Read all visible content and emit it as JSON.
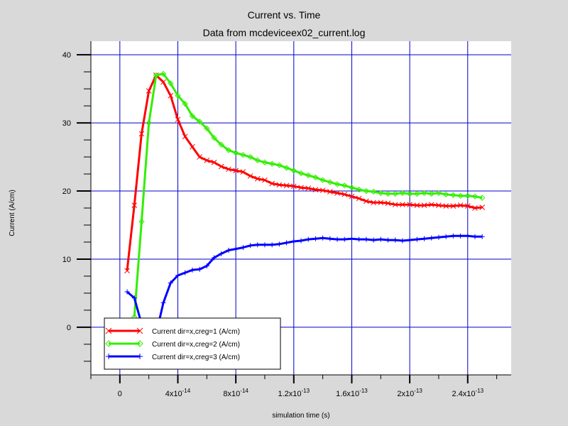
{
  "colors": {
    "background": "#d9d9d9",
    "plot_bg": "#ffffff",
    "grid": "#0000cc",
    "series": [
      "#ff0000",
      "#33ee00",
      "#0000ff"
    ]
  },
  "chart_data": {
    "type": "line",
    "title": "Current vs. Time",
    "subtitle": "Data from mcdeviceex02_current.log",
    "xlabel": "simulation time (s)",
    "ylabel": "Current (A/cm)",
    "xlim": [
      -2e-14,
      2.7e-13
    ],
    "ylim": [
      -7,
      42
    ],
    "x_ticks": [
      {
        "value": 0,
        "label": "0"
      },
      {
        "value": 4e-14,
        "base": "4x10",
        "exp": "-14"
      },
      {
        "value": 8e-14,
        "base": "8x10",
        "exp": "-14"
      },
      {
        "value": 1.2e-13,
        "base": "1.2x10",
        "exp": "-13"
      },
      {
        "value": 1.6e-13,
        "base": "1.6x10",
        "exp": "-13"
      },
      {
        "value": 2e-13,
        "base": "2x10",
        "exp": "-13"
      },
      {
        "value": 2.4e-13,
        "base": "2.4x10",
        "exp": "-13"
      }
    ],
    "y_ticks": [
      0,
      10,
      20,
      30,
      40
    ],
    "grid": true,
    "legend_position": "bottom-left",
    "series": [
      {
        "name": "Current dir=x,creg=1 (A/cm)",
        "color": "#ff0000",
        "marker": "x",
        "points": [
          [
            5e-15,
            8.3
          ],
          [
            1e-14,
            17.9
          ],
          [
            1.5e-14,
            28.4
          ],
          [
            2e-14,
            34.7
          ],
          [
            2.5e-14,
            37.0
          ],
          [
            3e-14,
            36.0
          ],
          [
            3.5e-14,
            34.0
          ],
          [
            4e-14,
            30.5
          ],
          [
            4.5e-14,
            28.0
          ],
          [
            5e-14,
            26.5
          ],
          [
            5.5e-14,
            25.0
          ],
          [
            6e-14,
            24.5
          ],
          [
            6.5e-14,
            24.2
          ],
          [
            7e-14,
            23.6
          ],
          [
            7.5e-14,
            23.2
          ],
          [
            8e-14,
            23.0
          ],
          [
            8.5e-14,
            22.8
          ],
          [
            9e-14,
            22.2
          ],
          [
            9.5e-14,
            21.8
          ],
          [
            1e-13,
            21.6
          ],
          [
            1.05e-13,
            21.1
          ],
          [
            1.1e-13,
            20.9
          ],
          [
            1.15e-13,
            20.8
          ],
          [
            1.2e-13,
            20.7
          ],
          [
            1.25e-13,
            20.5
          ],
          [
            1.3e-13,
            20.4
          ],
          [
            1.35e-13,
            20.2
          ],
          [
            1.4e-13,
            20.1
          ],
          [
            1.45e-13,
            19.9
          ],
          [
            1.5e-13,
            19.7
          ],
          [
            1.55e-13,
            19.5
          ],
          [
            1.6e-13,
            19.2
          ],
          [
            1.65e-13,
            18.9
          ],
          [
            1.7e-13,
            18.5
          ],
          [
            1.75e-13,
            18.3
          ],
          [
            1.8e-13,
            18.3
          ],
          [
            1.85e-13,
            18.2
          ],
          [
            1.9e-13,
            18.0
          ],
          [
            1.95e-13,
            18.0
          ],
          [
            2e-13,
            18.0
          ],
          [
            2.05e-13,
            17.9
          ],
          [
            2.1e-13,
            17.9
          ],
          [
            2.15e-13,
            18.0
          ],
          [
            2.2e-13,
            17.9
          ],
          [
            2.25e-13,
            17.8
          ],
          [
            2.3e-13,
            17.8
          ],
          [
            2.35e-13,
            17.9
          ],
          [
            2.4e-13,
            17.8
          ],
          [
            2.45e-13,
            17.5
          ],
          [
            2.5e-13,
            17.6
          ]
        ]
      },
      {
        "name": "Current dir=x,creg=2 (A/cm)",
        "color": "#33ee00",
        "marker": "diamond",
        "points": [
          [
            1e-14,
            1.5
          ],
          [
            1.5e-14,
            15.5
          ],
          [
            2e-14,
            30.0
          ],
          [
            2.5e-14,
            37.0
          ],
          [
            3e-14,
            37.2
          ],
          [
            3.5e-14,
            35.8
          ],
          [
            4e-14,
            34.0
          ],
          [
            4.5e-14,
            32.8
          ],
          [
            5e-14,
            31.0
          ],
          [
            5.5e-14,
            30.2
          ],
          [
            6e-14,
            29.2
          ],
          [
            6.5e-14,
            27.8
          ],
          [
            7e-14,
            26.8
          ],
          [
            7.5e-14,
            26.0
          ],
          [
            8e-14,
            25.6
          ],
          [
            8.5e-14,
            25.3
          ],
          [
            9e-14,
            25.0
          ],
          [
            9.5e-14,
            24.5
          ],
          [
            1e-13,
            24.2
          ],
          [
            1.05e-13,
            24.0
          ],
          [
            1.1e-13,
            23.8
          ],
          [
            1.15e-13,
            23.4
          ],
          [
            1.2e-13,
            23.0
          ],
          [
            1.25e-13,
            22.6
          ],
          [
            1.3e-13,
            22.3
          ],
          [
            1.35e-13,
            22.0
          ],
          [
            1.4e-13,
            21.6
          ],
          [
            1.45e-13,
            21.3
          ],
          [
            1.5e-13,
            21.0
          ],
          [
            1.55e-13,
            20.8
          ],
          [
            1.6e-13,
            20.5
          ],
          [
            1.65e-13,
            20.2
          ],
          [
            1.7e-13,
            20.0
          ],
          [
            1.75e-13,
            19.9
          ],
          [
            1.8e-13,
            19.7
          ],
          [
            1.85e-13,
            19.6
          ],
          [
            1.9e-13,
            19.6
          ],
          [
            1.95e-13,
            19.7
          ],
          [
            2e-13,
            19.6
          ],
          [
            2.05e-13,
            19.6
          ],
          [
            2.1e-13,
            19.7
          ],
          [
            2.15e-13,
            19.6
          ],
          [
            2.2e-13,
            19.7
          ],
          [
            2.25e-13,
            19.5
          ],
          [
            2.3e-13,
            19.4
          ],
          [
            2.35e-13,
            19.3
          ],
          [
            2.4e-13,
            19.3
          ],
          [
            2.45e-13,
            19.2
          ],
          [
            2.5e-13,
            19.0
          ]
        ]
      },
      {
        "name": "Current dir=x,creg=3 (A/cm)",
        "color": "#0000ff",
        "marker": "plus",
        "points": [
          [
            5e-15,
            5.2
          ],
          [
            1e-14,
            4.3
          ],
          [
            1.5e-14,
            0.5
          ],
          [
            2e-14,
            -2.5
          ],
          [
            2.5e-14,
            -1.0
          ],
          [
            3e-14,
            3.6
          ],
          [
            3.5e-14,
            6.5
          ],
          [
            4e-14,
            7.6
          ],
          [
            4.5e-14,
            8.0
          ],
          [
            5e-14,
            8.4
          ],
          [
            5.5e-14,
            8.5
          ],
          [
            6e-14,
            9.0
          ],
          [
            6.5e-14,
            10.2
          ],
          [
            7e-14,
            10.8
          ],
          [
            7.5e-14,
            11.3
          ],
          [
            8e-14,
            11.5
          ],
          [
            8.5e-14,
            11.7
          ],
          [
            9e-14,
            12.0
          ],
          [
            9.5e-14,
            12.1
          ],
          [
            1e-13,
            12.1
          ],
          [
            1.05e-13,
            12.1
          ],
          [
            1.1e-13,
            12.2
          ],
          [
            1.15e-13,
            12.4
          ],
          [
            1.2e-13,
            12.6
          ],
          [
            1.25e-13,
            12.7
          ],
          [
            1.3e-13,
            12.9
          ],
          [
            1.35e-13,
            13.0
          ],
          [
            1.4e-13,
            13.1
          ],
          [
            1.45e-13,
            13.0
          ],
          [
            1.5e-13,
            12.9
          ],
          [
            1.55e-13,
            12.9
          ],
          [
            1.6e-13,
            13.0
          ],
          [
            1.65e-13,
            12.9
          ],
          [
            1.7e-13,
            12.9
          ],
          [
            1.75e-13,
            12.8
          ],
          [
            1.8e-13,
            12.9
          ],
          [
            1.85e-13,
            12.8
          ],
          [
            1.9e-13,
            12.8
          ],
          [
            1.95e-13,
            12.7
          ],
          [
            2e-13,
            12.8
          ],
          [
            2.05e-13,
            12.9
          ],
          [
            2.1e-13,
            13.0
          ],
          [
            2.15e-13,
            13.1
          ],
          [
            2.2e-13,
            13.2
          ],
          [
            2.25e-13,
            13.3
          ],
          [
            2.3e-13,
            13.4
          ],
          [
            2.35e-13,
            13.4
          ],
          [
            2.4e-13,
            13.4
          ],
          [
            2.45e-13,
            13.3
          ],
          [
            2.5e-13,
            13.3
          ]
        ]
      }
    ]
  }
}
